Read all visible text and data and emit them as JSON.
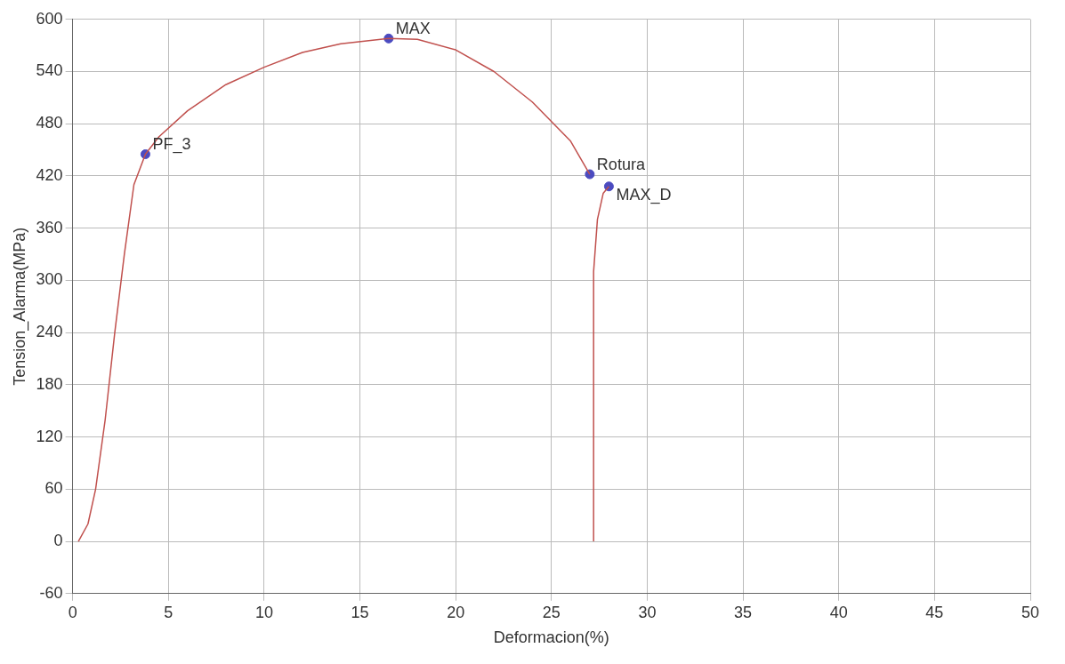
{
  "chart_data": {
    "type": "line",
    "xlabel": "Deformacion(%)",
    "ylabel": "Tension_Alarma(MPa)",
    "xlim": [
      0,
      50
    ],
    "xticks": [
      0,
      5,
      10,
      15,
      20,
      25,
      30,
      35,
      40,
      45,
      50
    ],
    "ylim": [
      -60,
      600
    ],
    "yticks": [
      -60,
      0,
      60,
      120,
      180,
      240,
      300,
      360,
      420,
      480,
      540,
      600
    ],
    "grid": true,
    "legend": false,
    "series": [
      {
        "color": "#c0504d",
        "marker": "none",
        "x": [
          0.3,
          0.8,
          1.2,
          1.7,
          2.2,
          2.7,
          3.2,
          3.8,
          4.5,
          6,
          8,
          10,
          12,
          14,
          16.5,
          18,
          20,
          22,
          24,
          26,
          27
        ],
        "values": [
          0,
          20,
          60,
          140,
          240,
          330,
          410,
          445,
          465,
          495,
          525,
          545,
          562,
          572,
          578,
          577,
          565,
          540,
          505,
          460,
          422
        ]
      },
      {
        "color": "#c0504d",
        "marker": "none",
        "x": [
          27.2,
          27.2,
          27.4,
          27.7,
          28
        ],
        "values": [
          0,
          310,
          370,
          400,
          408
        ]
      },
      {
        "type": "scatter",
        "color": "#4b4bc0",
        "marker": "circle",
        "x": [
          3.8,
          16.5,
          27,
          28
        ],
        "values": [
          445,
          578,
          422,
          408
        ]
      }
    ],
    "annotations": [
      {
        "text": "PF_3",
        "x": 3.8,
        "y": 445
      },
      {
        "text": "MAX",
        "x": 16.5,
        "y": 578
      },
      {
        "text": "Rotura",
        "x": 27,
        "y": 422
      },
      {
        "text": "MAX_D",
        "x": 28,
        "y": 408
      }
    ]
  }
}
